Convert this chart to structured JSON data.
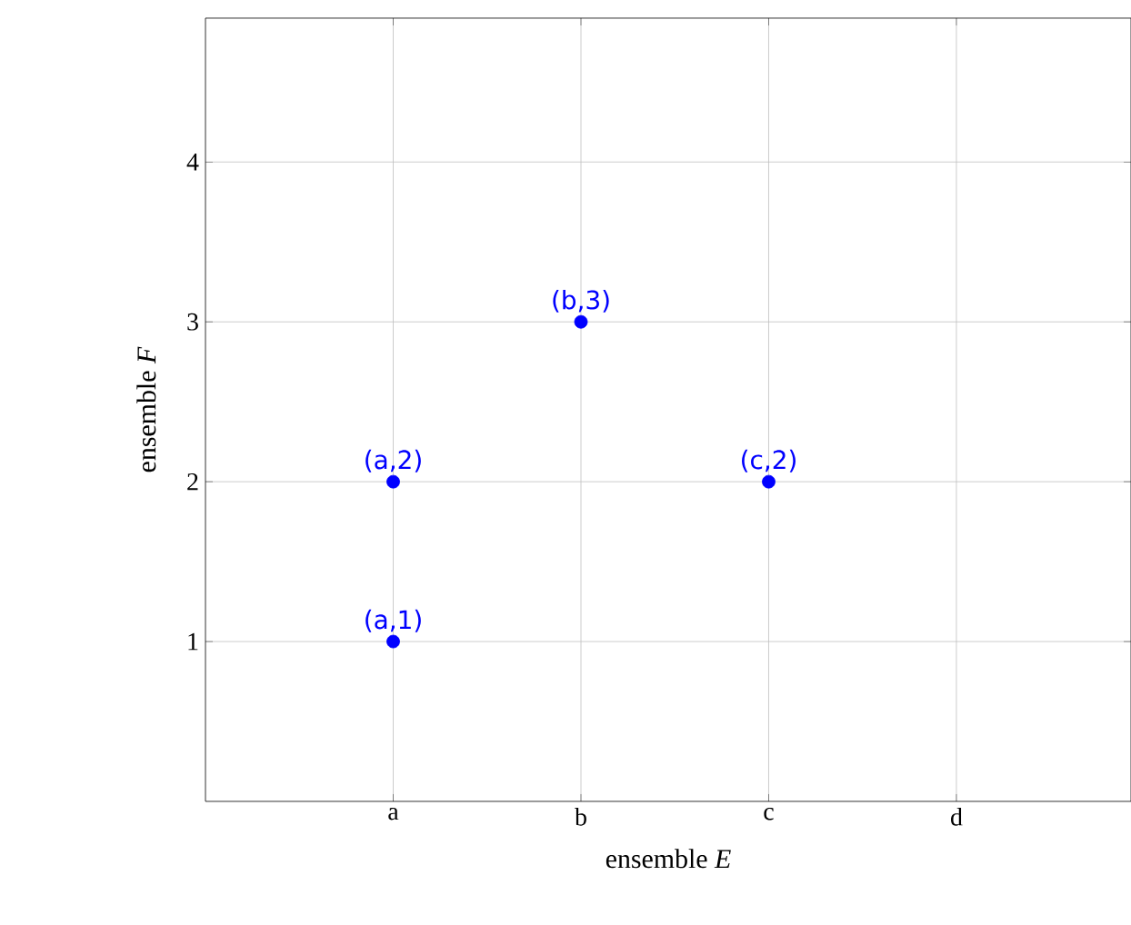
{
  "chart_data": {
    "type": "scatter",
    "xlabel": "ensemble *E*",
    "ylabel": "ensemble *F*",
    "categories": [
      "a",
      "b",
      "c",
      "d"
    ],
    "series": [
      {
        "color": "#0000ff",
        "values": [
          1,
          3,
          2,
          null
        ]
      },
      {
        "color": "#0000ff",
        "values": [
          2,
          null,
          null,
          null
        ]
      }
    ],
    "ylim": [
      0,
      4.9
    ],
    "yticks": [
      1,
      2,
      3,
      4
    ],
    "grid": true,
    "marker": "circle",
    "annotations": [
      {
        "text": "(a,1)",
        "x": "a",
        "y": 1
      },
      {
        "text": "(a,2)",
        "x": "a",
        "y": 2
      },
      {
        "text": "(b,3)",
        "x": "b",
        "y": 3
      },
      {
        "text": "(c,2)",
        "x": "c",
        "y": 2
      }
    ]
  }
}
